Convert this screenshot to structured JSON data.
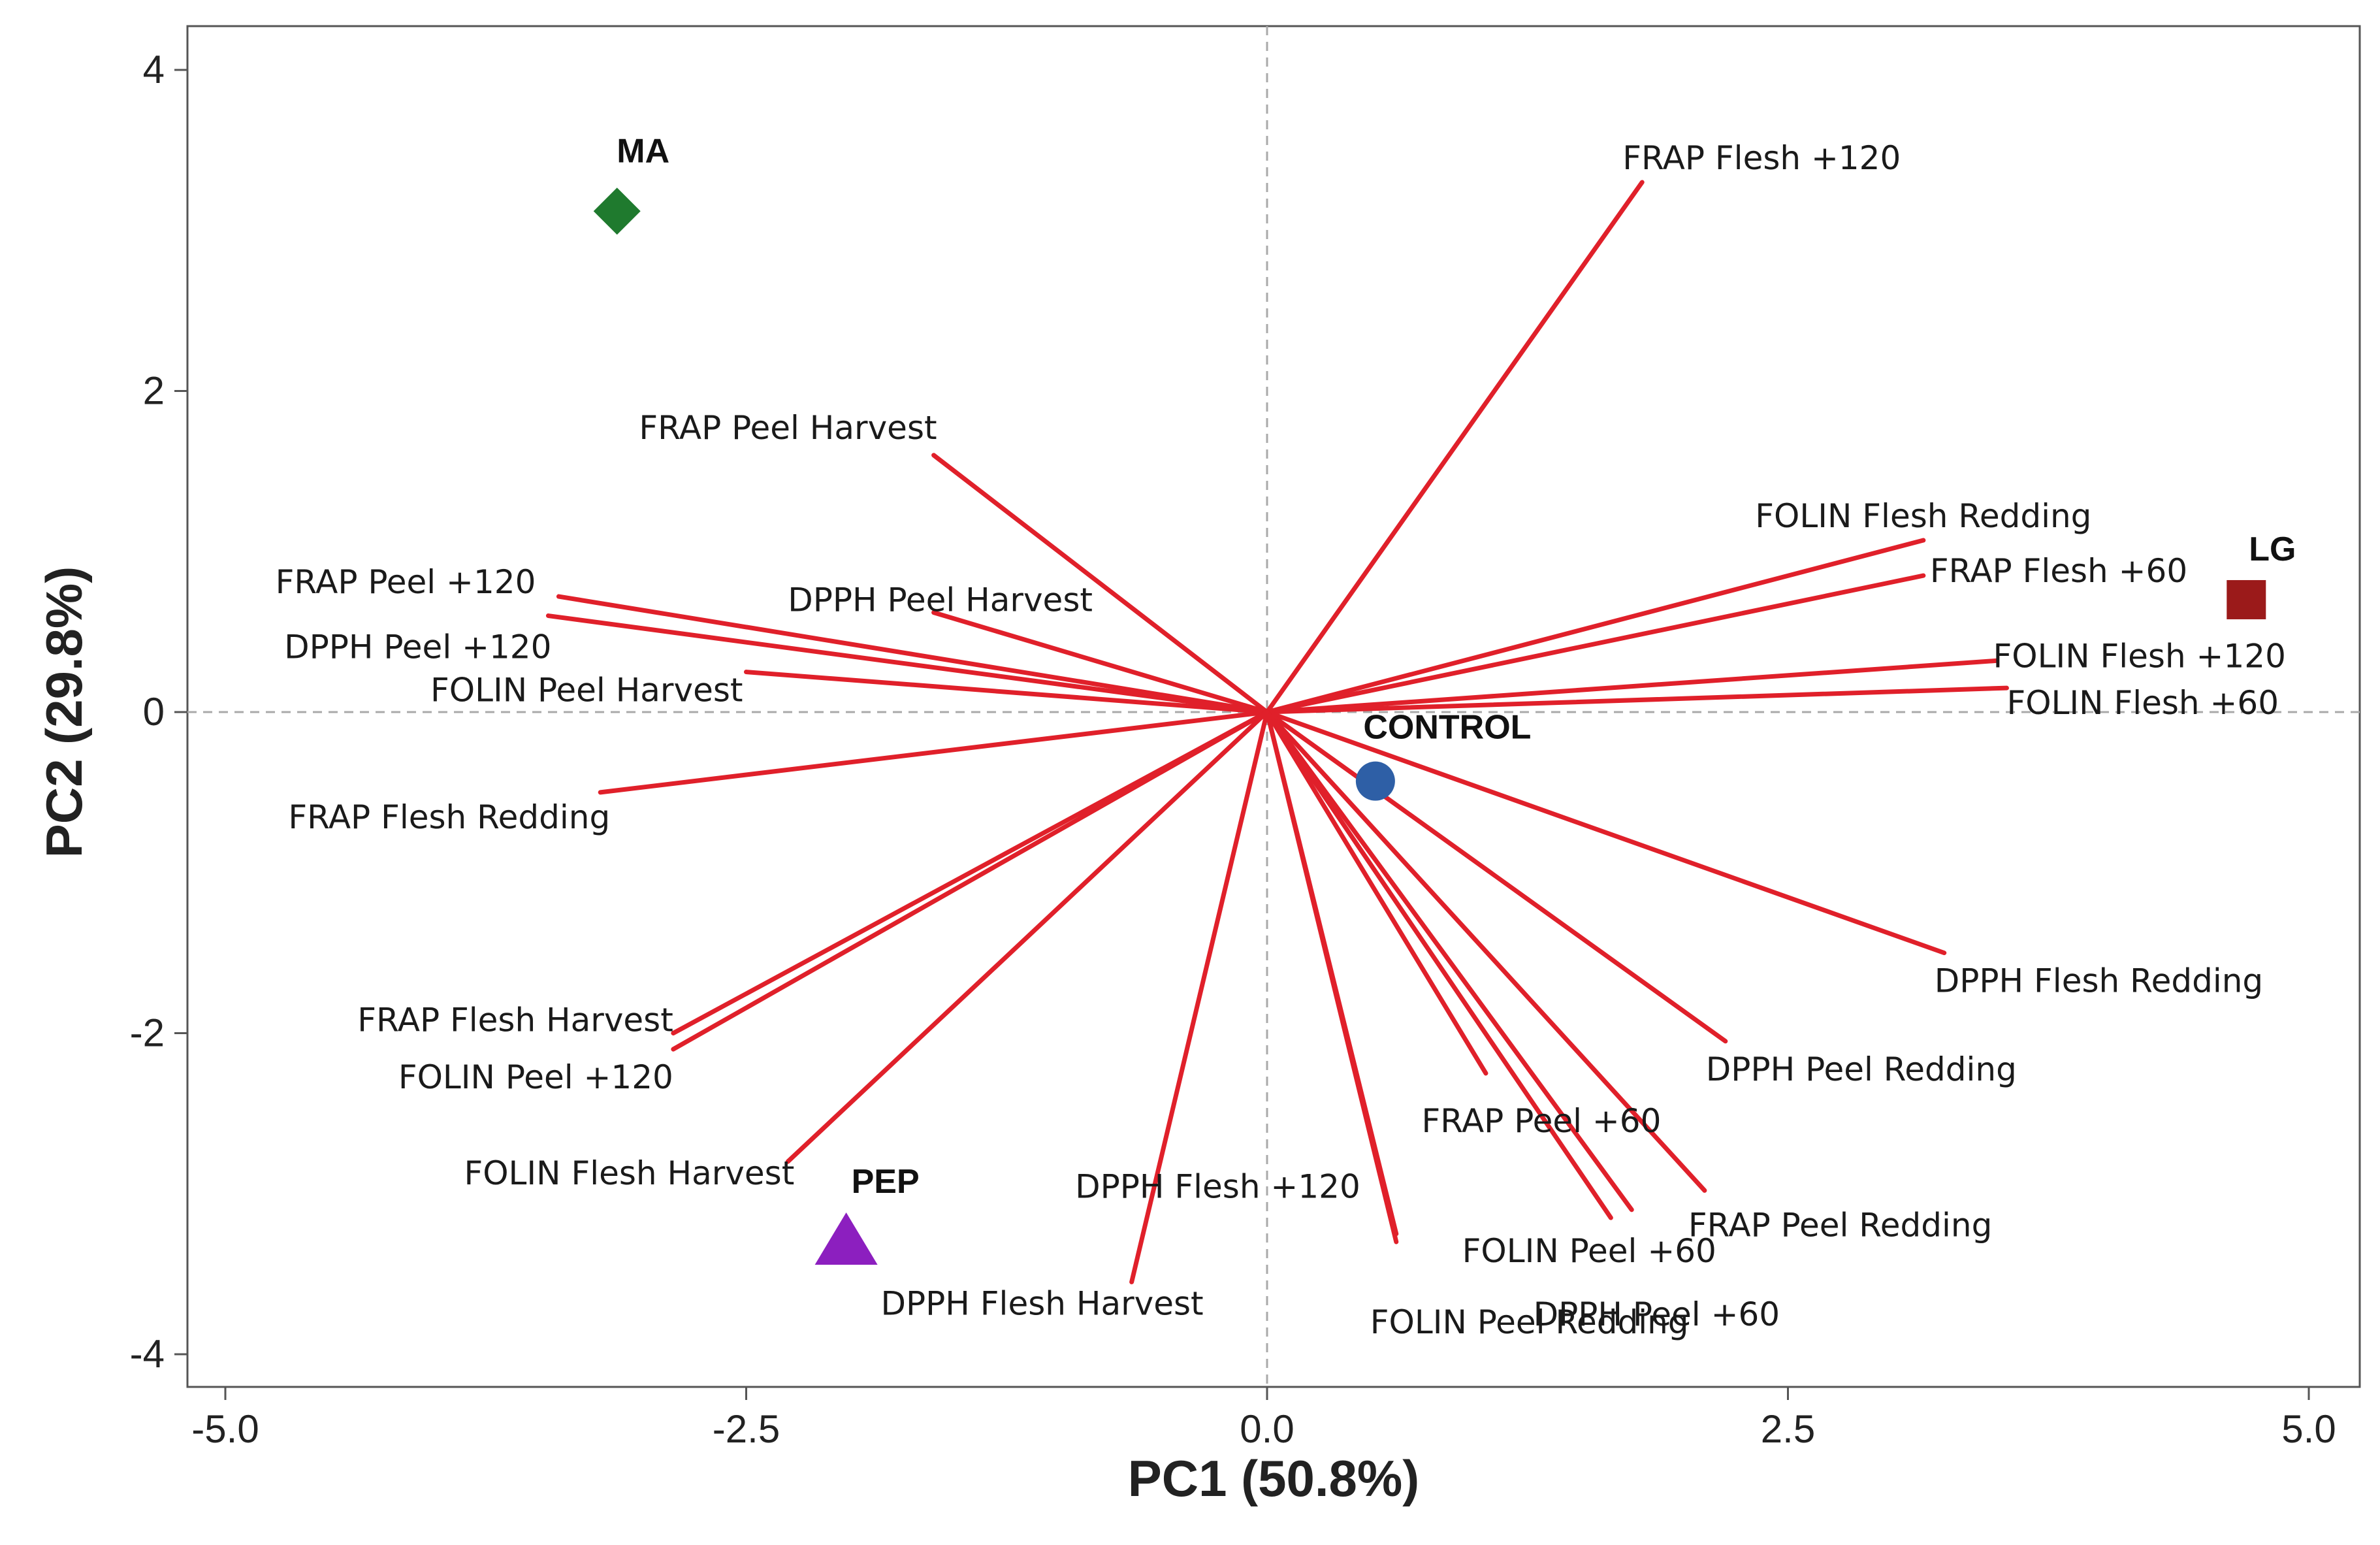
{
  "chart_data": {
    "type": "scatter",
    "subtype": "pca-biplot",
    "xlabel": "PC1 (50.8%)",
    "ylabel": "PC2 (29.8%)",
    "xlim": [
      -5.0,
      5.0
    ],
    "ylim": [
      -4.0,
      4.0
    ],
    "xticks": [
      -5.0,
      -2.5,
      0.0,
      2.5,
      5.0
    ],
    "xtick_labels": [
      "-5.0",
      "-2.5",
      "0.0",
      "2.5",
      "5.0"
    ],
    "yticks": [
      4,
      2,
      0,
      -2,
      -4
    ],
    "ytick_labels": [
      "4",
      "2",
      "0",
      "-2",
      "-4"
    ],
    "reference_lines": {
      "x": 0,
      "y": 0,
      "style": "dashed"
    },
    "vector_color": "#e0202a",
    "vectors": [
      {
        "name": "FRAP Flesh +120",
        "x": 1.8,
        "y": 3.3
      },
      {
        "name": "FRAP Peel Harvest",
        "x": -1.6,
        "y": 1.6
      },
      {
        "name": "FRAP Peel +120",
        "x": -3.4,
        "y": 0.72
      },
      {
        "name": "DPPH Peel +120",
        "x": -3.45,
        "y": 0.6
      },
      {
        "name": "DPPH Peel Harvest",
        "x": -1.6,
        "y": 0.62
      },
      {
        "name": "FOLIN Peel Harvest",
        "x": -2.5,
        "y": 0.25
      },
      {
        "name": "FRAP Flesh Redding",
        "x": -3.2,
        "y": -0.5
      },
      {
        "name": "FOLIN Flesh Redding",
        "x": 3.15,
        "y": 1.07
      },
      {
        "name": "FRAP Flesh +60",
        "x": 3.15,
        "y": 0.85
      },
      {
        "name": "FOLIN Flesh +120",
        "x": 3.5,
        "y": 0.32
      },
      {
        "name": "FOLIN Flesh +60",
        "x": 3.55,
        "y": 0.15
      },
      {
        "name": "DPPH Flesh Redding",
        "x": 3.25,
        "y": -1.5
      },
      {
        "name": "DPPH Peel Redding",
        "x": 2.2,
        "y": -2.05
      },
      {
        "name": "FRAP Peel +60",
        "x": 1.05,
        "y": -2.25
      },
      {
        "name": "FRAP Peel Redding",
        "x": 2.1,
        "y": -2.98
      },
      {
        "name": "FOLIN Peel +60",
        "x": 1.75,
        "y": -3.1
      },
      {
        "name": "DPPH Peel +60",
        "x": 1.65,
        "y": -3.15
      },
      {
        "name": "FOLIN Peel Redding",
        "x": 0.62,
        "y": -3.3
      },
      {
        "name": "DPPH Flesh +120",
        "x": 0.62,
        "y": -3.25
      },
      {
        "name": "DPPH Flesh  Harvest",
        "x": -0.65,
        "y": -3.55
      },
      {
        "name": "FRAP Flesh Harvest",
        "x": -2.85,
        "y": -2.0
      },
      {
        "name": "FOLIN Peel +120",
        "x": -2.85,
        "y": -2.1
      },
      {
        "name": "FOLIN Flesh Harvest",
        "x": -2.3,
        "y": -2.8
      }
    ],
    "scores": [
      {
        "name": "MA",
        "x": -3.12,
        "y": 3.12,
        "marker": "diamond",
        "color": "#1f7a2e"
      },
      {
        "name": "LG",
        "x": 4.7,
        "y": 0.7,
        "marker": "square",
        "color": "#9b1a1a"
      },
      {
        "name": "CONTROL",
        "x": 0.52,
        "y": -0.43,
        "marker": "circle",
        "color": "#2e5fa6"
      },
      {
        "name": "PEP",
        "x": -2.02,
        "y": -3.3,
        "marker": "triangle",
        "color": "#8c1fbf"
      }
    ]
  }
}
